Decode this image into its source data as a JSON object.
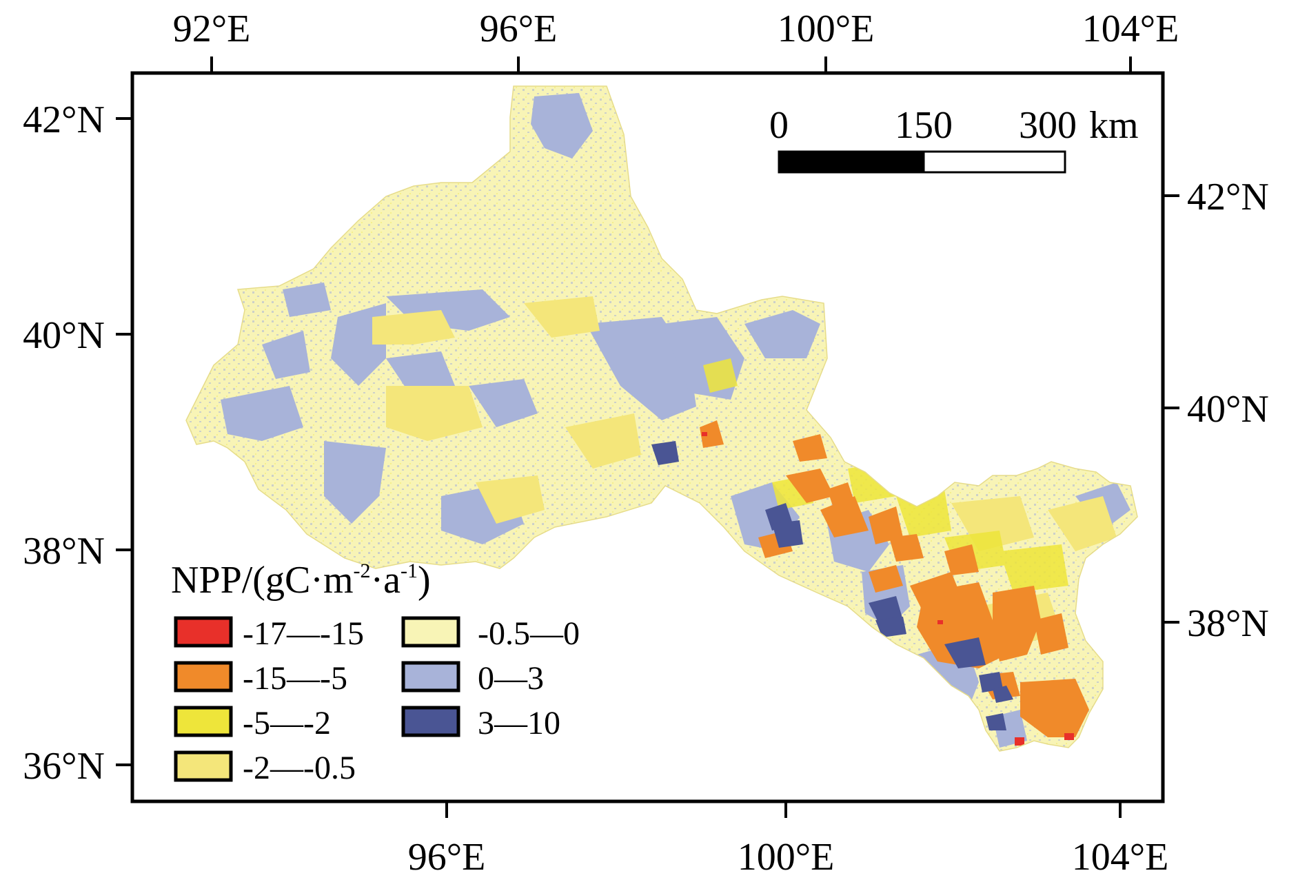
{
  "axes": {
    "top_lon_labels": [
      "92°E",
      "96°E",
      "100°E",
      "104°E"
    ],
    "bottom_lon_labels": [
      "96°E",
      "100°E",
      "104°E"
    ],
    "left_lat_labels": [
      "42°N",
      "40°N",
      "38°N",
      "36°N"
    ],
    "right_lat_labels": [
      "42°N",
      "40°N",
      "38°N"
    ]
  },
  "scale_bar": {
    "labels": [
      "0",
      "150",
      "300"
    ],
    "unit": "km"
  },
  "legend": {
    "title_main": "NPP/(gC·m",
    "title_sup1": "-2",
    "title_mid": "·a",
    "title_sup2": "-1",
    "title_end": ")",
    "items": [
      {
        "label": "-17—-15",
        "color": "#e8302a"
      },
      {
        "label": "-15—-5",
        "color": "#f08a2a"
      },
      {
        "label": "-5—-2",
        "color": "#eee53a"
      },
      {
        "label": "-2—-0.5",
        "color": "#f4e67a"
      },
      {
        "label": "-0.5—0",
        "color": "#f8f4b6"
      },
      {
        "label": "0—3",
        "color": "#a8b3d9"
      },
      {
        "label": "3—10",
        "color": "#4a5594"
      }
    ]
  }
}
